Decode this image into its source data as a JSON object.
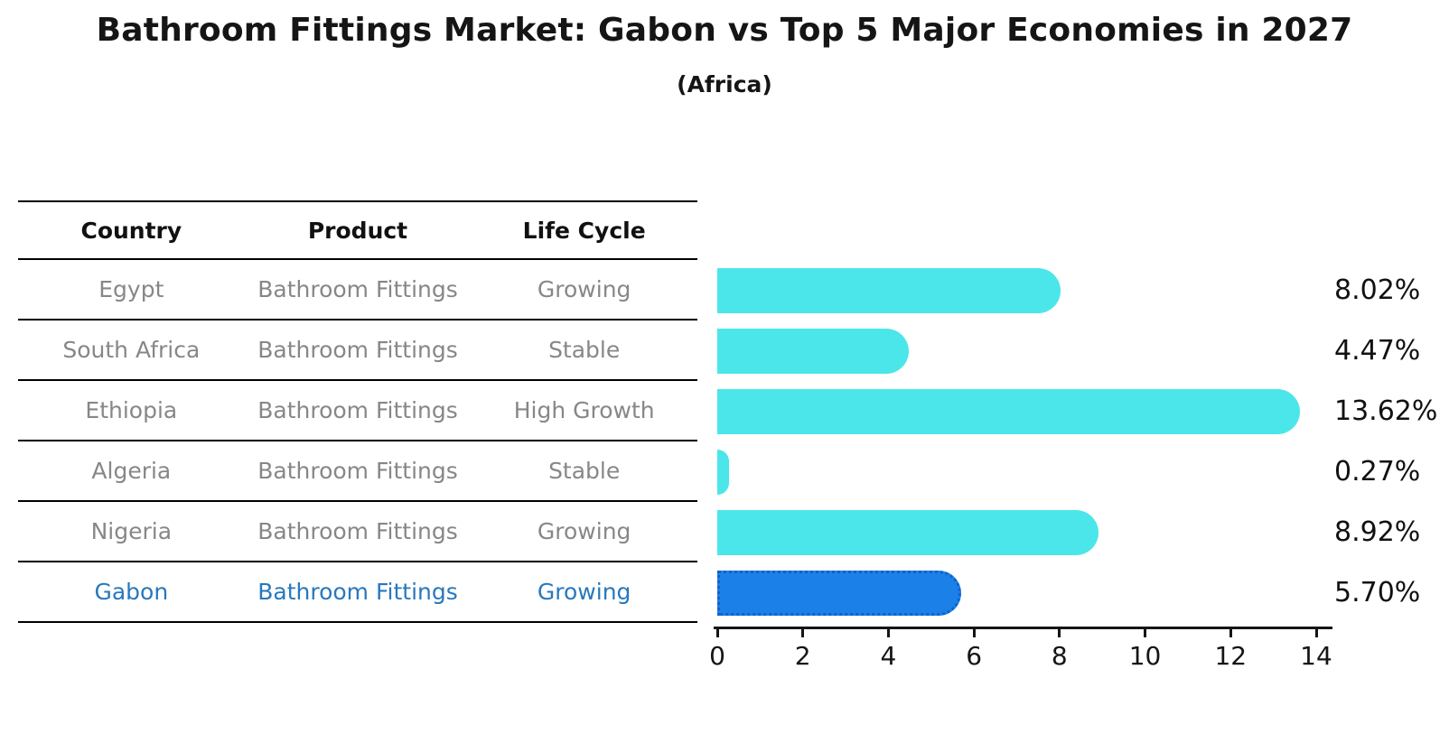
{
  "figure": {
    "title": "Bathroom Fittings Market: Gabon vs Top 5 Major Economies in 2027",
    "subtitle": "(Africa)"
  },
  "table": {
    "headers": [
      "Country",
      "Product",
      "Life Cycle"
    ],
    "rows": [
      {
        "country": "Egypt",
        "product": "Bathroom Fittings",
        "life_cycle": "Growing",
        "highlight": false
      },
      {
        "country": "South Africa",
        "product": "Bathroom Fittings",
        "life_cycle": "Stable",
        "highlight": false
      },
      {
        "country": "Ethiopia",
        "product": "Bathroom Fittings",
        "life_cycle": "High Growth",
        "highlight": false
      },
      {
        "country": "Algeria",
        "product": "Bathroom Fittings",
        "life_cycle": "Stable",
        "highlight": false
      },
      {
        "country": "Nigeria",
        "product": "Bathroom Fittings",
        "life_cycle": "Growing",
        "highlight": false
      },
      {
        "country": "Gabon",
        "product": "Bathroom Fittings",
        "life_cycle": "Growing",
        "highlight": true
      }
    ]
  },
  "chart_data": {
    "type": "bar",
    "orientation": "horizontal",
    "title": "Bathroom Fittings Market: Gabon vs Top 5 Major Economies in 2027 (Africa)",
    "categories": [
      "Egypt",
      "South Africa",
      "Ethiopia",
      "Algeria",
      "Nigeria",
      "Gabon"
    ],
    "values": [
      8.02,
      4.47,
      13.62,
      0.27,
      8.92,
      5.7
    ],
    "value_labels": [
      "8.02%",
      "4.47%",
      "13.62%",
      "0.27%",
      "8.92%",
      "5.70%"
    ],
    "xlabel": "",
    "ylabel": "",
    "xlim": [
      0,
      14
    ],
    "xticks": [
      0,
      2,
      4,
      6,
      8,
      10,
      12,
      14
    ],
    "grid": false,
    "bar_color": "#4BE6EA",
    "highlight_bar_color": "#1B80E8",
    "highlight_index": 5
  },
  "colors": {
    "heading_text": "#151515",
    "table_text": "#878787",
    "highlight_text": "#2878BE"
  }
}
